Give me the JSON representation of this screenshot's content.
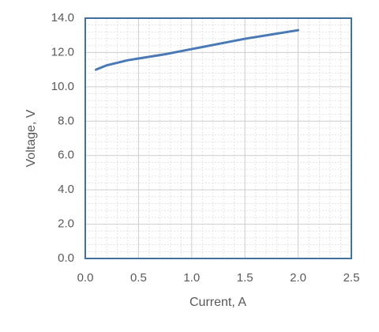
{
  "chart_data": {
    "type": "line",
    "xlabel": "Current, A",
    "ylabel": "Voltage, V",
    "x": [
      0.1,
      0.2,
      0.3,
      0.4,
      0.5,
      0.75,
      1.0,
      1.25,
      1.5,
      1.75,
      2.0
    ],
    "series": [
      {
        "color": "#4a7ab5",
        "values": [
          11.0,
          11.25,
          11.4,
          11.55,
          11.65,
          11.9,
          12.2,
          12.5,
          12.8,
          13.05,
          13.3
        ]
      }
    ],
    "xlim": [
      0,
      2.5
    ],
    "xticks": [
      {
        "value": 0,
        "label": "0.0"
      },
      0.5,
      {
        "value": 1,
        "label": "1.0"
      },
      1.5,
      {
        "value": 2,
        "label": "2.0"
      },
      2.5
    ],
    "ylim": [
      0,
      14
    ],
    "yticks": [
      {
        "value": 0,
        "label": "0.0"
      },
      {
        "value": 2,
        "label": "2.0"
      },
      {
        "value": 4,
        "label": "4.0"
      },
      {
        "value": 6,
        "label": "6.0"
      },
      {
        "value": 8,
        "label": "8.0"
      },
      {
        "value": 10,
        "label": "10.0"
      },
      {
        "value": 12,
        "label": "12.0"
      },
      {
        "value": 14,
        "label": "14.0"
      }
    ],
    "grid": true,
    "minor_grid": true
  }
}
